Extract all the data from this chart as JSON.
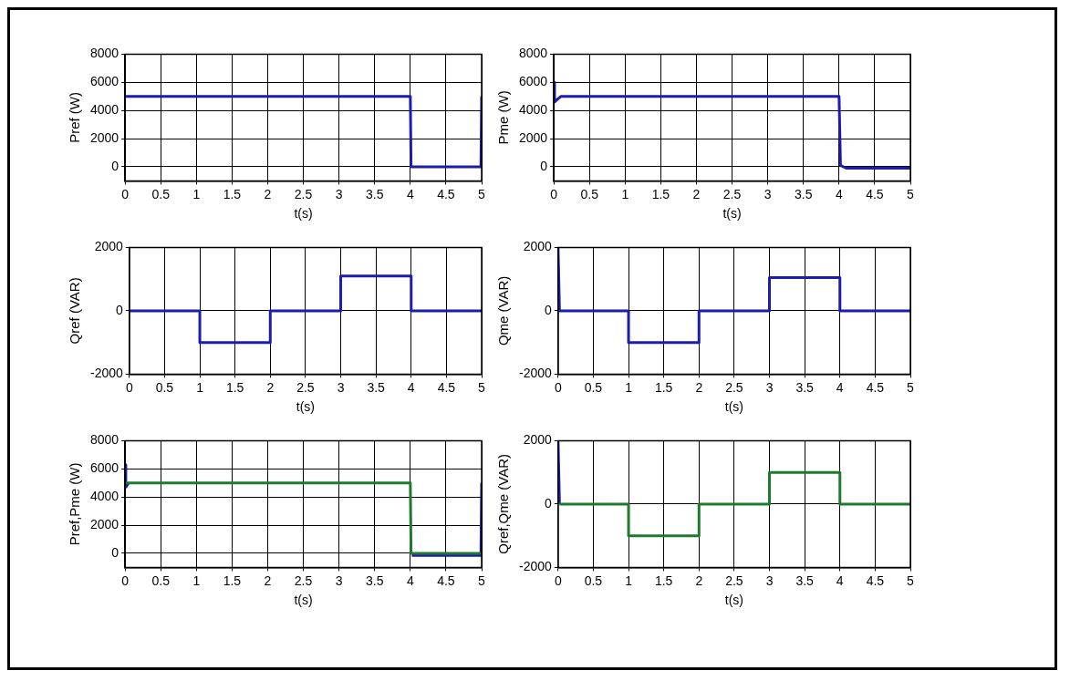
{
  "chart_data": [
    {
      "type": "line",
      "xlabel": "t(s)",
      "ylabel": "Pref (W)",
      "xlim": [
        0,
        5
      ],
      "xticks": [
        0,
        0.5,
        1,
        1.5,
        2,
        2.5,
        3,
        3.5,
        4,
        4.5,
        5
      ],
      "ylim": [
        -1000,
        8000
      ],
      "yticks": [
        0,
        2000,
        4000,
        6000,
        8000
      ],
      "grid": true,
      "marker": "none",
      "series": [
        {
          "color": "#1c1cb0",
          "x": [
            0,
            4,
            4.01,
            4.99,
            5
          ],
          "values": [
            5000,
            5000,
            0,
            0,
            5000
          ]
        }
      ]
    },
    {
      "type": "line",
      "xlabel": "t(s)",
      "ylabel": "Pme (W)",
      "xlim": [
        0,
        5
      ],
      "xticks": [
        0,
        0.5,
        1,
        1.5,
        2,
        2.5,
        3,
        3.5,
        4,
        4.5,
        5
      ],
      "ylim": [
        -1000,
        8000
      ],
      "yticks": [
        0,
        2000,
        4000,
        6000,
        8000
      ],
      "grid": true,
      "marker": "none",
      "series": [
        {
          "color": "#1c1cb0",
          "x": [
            0,
            0.01,
            0.05,
            0.1,
            0.5,
            4,
            4.02,
            4.1,
            5
          ],
          "values": [
            6000,
            4600,
            4800,
            5000,
            5000,
            5000,
            100,
            -100,
            -100
          ]
        }
      ]
    },
    {
      "type": "line",
      "xlabel": "t(s)",
      "ylabel": "Qref (VAR)",
      "xlim": [
        0,
        5
      ],
      "xticks": [
        0,
        0.5,
        1,
        1.5,
        2,
        2.5,
        3,
        3.5,
        4,
        4.5,
        5
      ],
      "ylim": [
        -2000,
        2000
      ],
      "yticks": [
        -2000,
        0,
        2000
      ],
      "grid": true,
      "marker": "none",
      "series": [
        {
          "color": "#1c1cb0",
          "x": [
            0,
            1,
            1,
            2,
            2,
            3,
            3,
            4,
            4,
            5
          ],
          "values": [
            0,
            0,
            -1000,
            -1000,
            0,
            0,
            1100,
            1100,
            0,
            0
          ]
        }
      ]
    },
    {
      "type": "line",
      "xlabel": "t(s)",
      "ylabel": "Qme (VAR)",
      "xlim": [
        0,
        5
      ],
      "xticks": [
        0,
        0.5,
        1,
        1.5,
        2,
        2.5,
        3,
        3.5,
        4,
        4.5,
        5
      ],
      "ylim": [
        -2000,
        2000
      ],
      "yticks": [
        -2000,
        0,
        2000
      ],
      "grid": true,
      "marker": "none",
      "series": [
        {
          "color": "#1c1cb0",
          "x": [
            0,
            0.02,
            1,
            1,
            2,
            2,
            3,
            3,
            4,
            4,
            5
          ],
          "values": [
            2000,
            0,
            0,
            -1000,
            -1000,
            0,
            0,
            1050,
            1050,
            0,
            0
          ]
        }
      ]
    },
    {
      "type": "line",
      "xlabel": "t(s)",
      "ylabel": "Pref,Pme (W)",
      "xlim": [
        0,
        5
      ],
      "xticks": [
        0,
        0.5,
        1,
        1.5,
        2,
        2.5,
        3,
        3.5,
        4,
        4.5,
        5
      ],
      "ylim": [
        -1000,
        8000
      ],
      "yticks": [
        0,
        2000,
        4000,
        6000,
        8000
      ],
      "grid": true,
      "marker": "none",
      "series": [
        {
          "color": "#1c1cb0",
          "x": [
            0,
            0.01,
            0.05,
            0.06,
            4.02,
            4.1,
            4.99,
            5
          ],
          "values": [
            6300,
            4700,
            5000,
            null,
            -150,
            -150,
            -150,
            5000
          ]
        },
        {
          "color": "#1e7b2e",
          "x": [
            0,
            4,
            4.01,
            4.99
          ],
          "values": [
            5000,
            5000,
            0,
            0
          ]
        }
      ]
    },
    {
      "type": "line",
      "xlabel": "t(s)",
      "ylabel": "Qref,Qme (VAR)",
      "xlim": [
        0,
        5
      ],
      "xticks": [
        0,
        0.5,
        1,
        1.5,
        2,
        2.5,
        3,
        3.5,
        4,
        4.5,
        5
      ],
      "ylim": [
        -2000,
        2000
      ],
      "yticks": [
        -2000,
        0,
        2000
      ],
      "grid": true,
      "marker": "none",
      "series": [
        {
          "color": "#1c1cb0",
          "x": [
            0,
            0.02
          ],
          "values": [
            2000,
            0
          ]
        },
        {
          "color": "#1e7b2e",
          "x": [
            0.02,
            1,
            1,
            2,
            2,
            3,
            3,
            4,
            4,
            5
          ],
          "values": [
            0,
            0,
            -1000,
            -1000,
            0,
            0,
            1000,
            1000,
            0,
            0
          ]
        }
      ]
    }
  ]
}
